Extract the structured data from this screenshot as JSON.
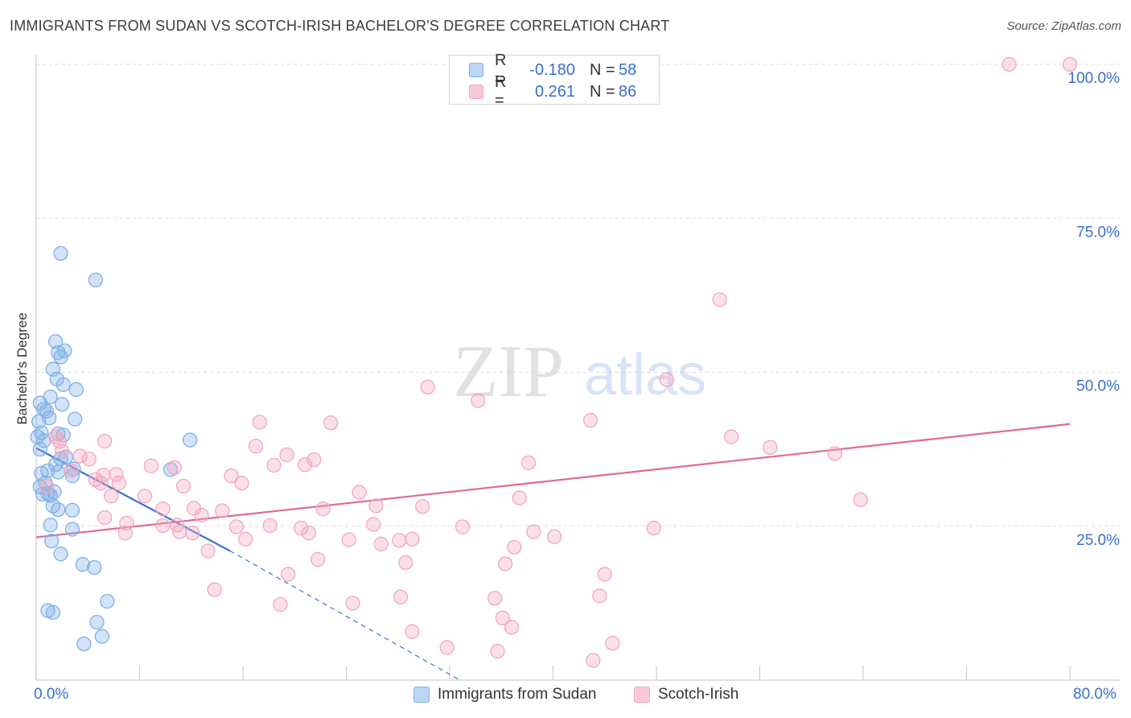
{
  "title": "IMMIGRANTS FROM SUDAN VS SCOTCH-IRISH BACHELOR'S DEGREE CORRELATION CHART",
  "source": "Source: ZipAtlas.com",
  "watermark": {
    "zip": "ZIP",
    "atlas": "atlas"
  },
  "legend": {
    "r_label": "R =",
    "n_label": "N =",
    "series": [
      {
        "r": "-0.180",
        "n": "58"
      },
      {
        "r": "0.261",
        "n": "86"
      }
    ]
  },
  "chart_data": {
    "type": "scatter",
    "title": "IMMIGRANTS FROM SUDAN VS SCOTCH-IRISH BACHELOR'S DEGREE CORRELATION CHART",
    "xlabel": "",
    "ylabel": "Bachelor's Degree",
    "xlim": [
      0,
      80
    ],
    "ylim": [
      0,
      100
    ],
    "x_tick_labels": [
      "0.0%",
      "80.0%"
    ],
    "y_ticks": [
      25,
      50,
      75,
      100
    ],
    "y_tick_labels": [
      "25.0%",
      "50.0%",
      "75.0%",
      "100.0%"
    ],
    "grid": true,
    "series": [
      {
        "name": "Immigrants from Sudan",
        "color": "#7fb0e8",
        "line_color": "#3a73d0",
        "points": [
          [
            1.9,
            69.3
          ],
          [
            4.6,
            65
          ],
          [
            1.5,
            55
          ],
          [
            1.7,
            53.2
          ],
          [
            1.9,
            52.5
          ],
          [
            2.2,
            53.5
          ],
          [
            1.3,
            50.5
          ],
          [
            1.6,
            48.9
          ],
          [
            2.1,
            48
          ],
          [
            3.1,
            47.2
          ],
          [
            1.1,
            46
          ],
          [
            0.3,
            45
          ],
          [
            2.0,
            44.8
          ],
          [
            0.6,
            44
          ],
          [
            0.8,
            43.7
          ],
          [
            1.0,
            42.6
          ],
          [
            3.0,
            42.4
          ],
          [
            0.2,
            42
          ],
          [
            0.4,
            40.2
          ],
          [
            1.7,
            40
          ],
          [
            0.1,
            39.5
          ],
          [
            2.1,
            39.8
          ],
          [
            0.6,
            38.9
          ],
          [
            11.9,
            39
          ],
          [
            0.3,
            37.5
          ],
          [
            1.9,
            36.0
          ],
          [
            2.3,
            36.2
          ],
          [
            1.5,
            35
          ],
          [
            2.9,
            34.3
          ],
          [
            10.4,
            34.2
          ],
          [
            0.9,
            34
          ],
          [
            0.4,
            33.6
          ],
          [
            1.7,
            33.8
          ],
          [
            2.8,
            33.2
          ],
          [
            0.7,
            32
          ],
          [
            0.3,
            31.4
          ],
          [
            1.4,
            30.6
          ],
          [
            0.9,
            30.3
          ],
          [
            0.5,
            30.2
          ],
          [
            1.1,
            30.0
          ],
          [
            1.3,
            28.3
          ],
          [
            1.7,
            27.7
          ],
          [
            2.8,
            27.6
          ],
          [
            1.1,
            25.2
          ],
          [
            2.8,
            24.5
          ],
          [
            1.2,
            22.6
          ],
          [
            1.9,
            20.5
          ],
          [
            3.6,
            18.8
          ],
          [
            4.5,
            18.3
          ],
          [
            5.5,
            12.8
          ],
          [
            0.9,
            11.3
          ],
          [
            1.3,
            11.0
          ],
          [
            4.7,
            9.4
          ],
          [
            5.1,
            7.1
          ],
          [
            3.7,
            5.9
          ]
        ],
        "trend": {
          "x1": 0,
          "y1": 37.7,
          "x2": 15,
          "y2": 21.0
        },
        "trend_dashed": {
          "x1": 15,
          "y1": 21.0,
          "x2": 32.8,
          "y2": 0
        }
      },
      {
        "name": "Scotch-Irish",
        "color": "#f4a6bf",
        "line_color": "#e06a96",
        "points": [
          [
            75.3,
            100
          ],
          [
            80.0,
            100
          ],
          [
            52.9,
            61.8
          ],
          [
            48.8,
            48.8
          ],
          [
            30.3,
            47.6
          ],
          [
            34.2,
            45.4
          ],
          [
            17.3,
            41.9
          ],
          [
            22.8,
            41.8
          ],
          [
            42.9,
            42.2
          ],
          [
            53.8,
            39.5
          ],
          [
            56.8,
            37.8
          ],
          [
            61.8,
            36.8
          ],
          [
            1.5,
            39.5
          ],
          [
            1.8,
            38.8
          ],
          [
            5.3,
            38.8
          ],
          [
            2.0,
            37.2
          ],
          [
            3.4,
            36.4
          ],
          [
            4.1,
            35.9
          ],
          [
            17.0,
            38
          ],
          [
            19.4,
            36.6
          ],
          [
            21.5,
            35.8
          ],
          [
            8.9,
            34.8
          ],
          [
            10.7,
            34.5
          ],
          [
            2.7,
            34
          ],
          [
            5.2,
            33.3
          ],
          [
            6.2,
            33.4
          ],
          [
            15.1,
            33.2
          ],
          [
            18.4,
            34.9
          ],
          [
            20.8,
            35.0
          ],
          [
            38.1,
            35.3
          ],
          [
            4.6,
            32.6
          ],
          [
            5.0,
            32
          ],
          [
            6.4,
            32
          ],
          [
            15.9,
            32
          ],
          [
            11.4,
            31.5
          ],
          [
            0.8,
            31.5
          ],
          [
            25.0,
            30.5
          ],
          [
            8.4,
            29.9
          ],
          [
            5.8,
            29.9
          ],
          [
            37.4,
            29.6
          ],
          [
            12.2,
            27.9
          ],
          [
            14.4,
            27.5
          ],
          [
            9.8,
            27.8
          ],
          [
            22.2,
            27.8
          ],
          [
            26.3,
            28.3
          ],
          [
            29.9,
            28.2
          ],
          [
            63.8,
            29.3
          ],
          [
            12.8,
            26.8
          ],
          [
            5.3,
            26.4
          ],
          [
            7.0,
            25.5
          ],
          [
            9.8,
            25.1
          ],
          [
            10.9,
            25.2
          ],
          [
            15.5,
            24.9
          ],
          [
            18.1,
            25.1
          ],
          [
            20.5,
            24.7
          ],
          [
            26.1,
            25.3
          ],
          [
            33.0,
            24.9
          ],
          [
            47.8,
            24.7
          ],
          [
            6.9,
            23.9
          ],
          [
            11.1,
            24.1
          ],
          [
            12.1,
            23.9
          ],
          [
            21.1,
            23.9
          ],
          [
            38.5,
            24.1
          ],
          [
            16.2,
            22.9
          ],
          [
            24.2,
            22.8
          ],
          [
            28.1,
            22.7
          ],
          [
            29.1,
            22.9
          ],
          [
            40.1,
            23.3
          ],
          [
            26.7,
            22.1
          ],
          [
            37.0,
            21.6
          ],
          [
            13.3,
            21.0
          ],
          [
            21.8,
            19.6
          ],
          [
            28.6,
            19.1
          ],
          [
            36.3,
            18.9
          ],
          [
            19.5,
            17.2
          ],
          [
            44.0,
            17.2
          ],
          [
            13.8,
            14.7
          ],
          [
            18.9,
            12.3
          ],
          [
            24.5,
            12.5
          ],
          [
            28.2,
            13.5
          ],
          [
            35.5,
            13.3
          ],
          [
            43.6,
            13.7
          ],
          [
            36.1,
            10.1
          ],
          [
            36.8,
            8.6
          ],
          [
            29.1,
            7.9
          ],
          [
            31.8,
            5.3
          ],
          [
            35.7,
            4.7
          ],
          [
            44.6,
            6.0
          ],
          [
            43.1,
            3.2
          ]
        ],
        "trend": {
          "x1": 0,
          "y1": 23.2,
          "x2": 80,
          "y2": 41.6
        }
      }
    ]
  },
  "bottom_legend": [
    "Immigrants from Sudan",
    "Scotch-Irish"
  ]
}
